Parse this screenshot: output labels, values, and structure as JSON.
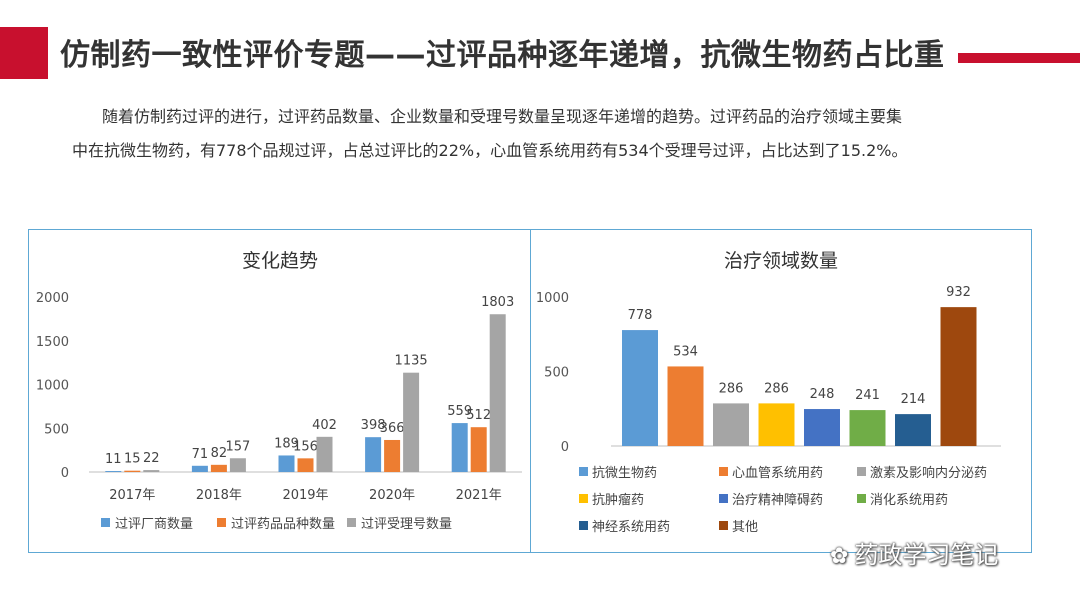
{
  "title": "仿制药一致性评价专题——过评品种逐年递增，抗微生物药占比重",
  "intro": {
    "line1": "随着仿制药过评的进行，过评药品数量、企业数量和受理号数量呈现逐年递增的趋势。过评药品的治疗领域主要集",
    "line2": "中在抗微生物药，有778个品规过评，占总过评比的22%，心血管系统用药有534个受理号过评，占比达到了15.2%。"
  },
  "watermark": "药政学习笔记",
  "colors": {
    "accent": "#c8102e",
    "border": "#5ea8d4"
  },
  "chart_data": [
    {
      "type": "bar",
      "title": "变化趋势",
      "categories": [
        "2017年",
        "2018年",
        "2019年",
        "2020年",
        "2021年"
      ],
      "series": [
        {
          "name": "过评厂商数量",
          "values": [
            11,
            71,
            189,
            398,
            559
          ],
          "color": "#5b9bd5"
        },
        {
          "name": "过评药品品种数量",
          "values": [
            15,
            82,
            156,
            366,
            512
          ],
          "color": "#ed7d31"
        },
        {
          "name": "过评受理号数量",
          "values": [
            22,
            157,
            402,
            1135,
            1803
          ],
          "color": "#a5a5a5"
        }
      ],
      "yticks": [
        0,
        500,
        1000,
        1500,
        2000
      ],
      "ylim": [
        0,
        2000
      ],
      "grid": false,
      "legend": "bottom"
    },
    {
      "type": "bar",
      "title": "治疗领域数量",
      "categories": [
        "抗微生物药",
        "心血管系统用药",
        "激素及影响内分泌药",
        "抗肿瘤药",
        "治疗精神障碍药",
        "消化系统用药",
        "神经系统用药",
        "其他"
      ],
      "values": [
        778,
        534,
        286,
        286,
        248,
        241,
        214,
        932
      ],
      "colors": [
        "#5b9bd5",
        "#ed7d31",
        "#a5a5a5",
        "#ffc000",
        "#4472c4",
        "#70ad47",
        "#255e91",
        "#9e480e"
      ],
      "yticks": [
        0,
        500,
        1000
      ],
      "ylim": [
        0,
        1000
      ],
      "grid": false,
      "legend": "bottom"
    }
  ]
}
